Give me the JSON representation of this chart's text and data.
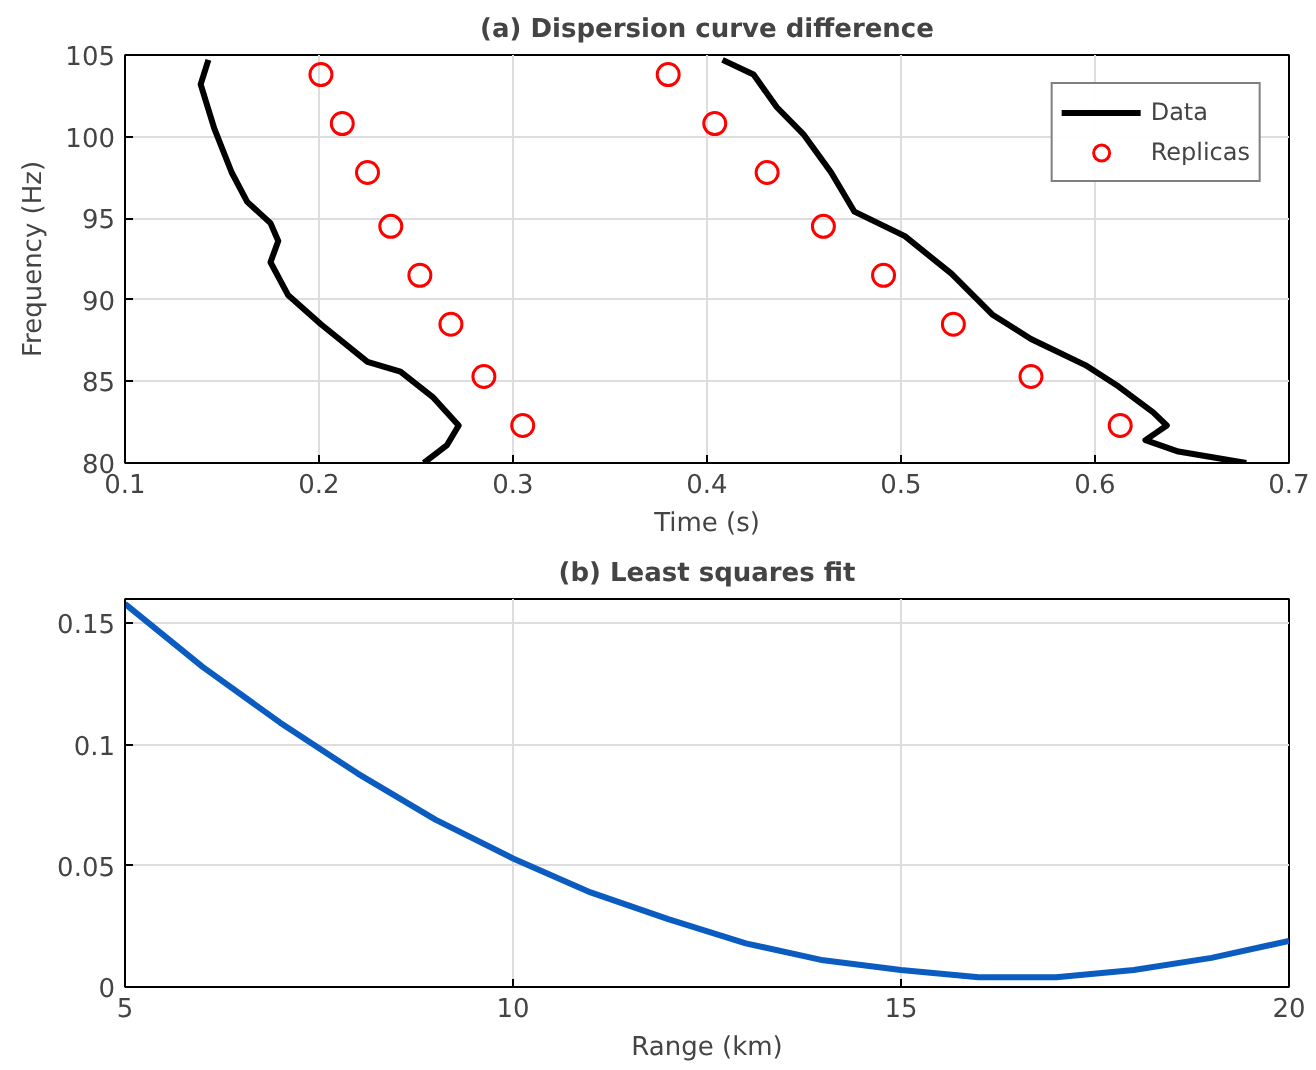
{
  "chart_data": [
    {
      "type": "line",
      "title": "(a) Dispersion curve difference",
      "xlabel": "Time (s)",
      "ylabel": "Frequency (Hz)",
      "xlim": [
        0.1,
        0.7
      ],
      "ylim": [
        80,
        105
      ],
      "xticks": [
        0.1,
        0.2,
        0.3,
        0.4,
        0.5,
        0.6,
        0.7
      ],
      "yticks": [
        80,
        85,
        90,
        95,
        100,
        105
      ],
      "grid": true,
      "legend": "top right",
      "series": [
        {
          "name": "Data",
          "color": "#000000",
          "x": [
            0.143,
            0.139,
            0.146,
            0.155,
            0.163,
            0.175,
            0.179,
            0.175,
            0.184,
            0.201,
            0.225,
            0.242,
            0.259,
            0.272,
            0.266,
            0.254
          ],
          "values": [
            104.7,
            103.2,
            100.5,
            97.8,
            96.0,
            94.7,
            93.6,
            92.3,
            90.3,
            88.5,
            86.2,
            85.6,
            84.0,
            82.3,
            81.1,
            80.0
          ]
        },
        {
          "color": "#000000",
          "x": [
            0.408,
            0.424,
            0.436,
            0.45,
            0.464,
            0.476,
            0.502,
            0.526,
            0.547,
            0.567,
            0.595,
            0.612,
            0.63,
            0.637,
            0.626,
            0.643,
            0.678
          ],
          "values": [
            104.7,
            103.8,
            101.8,
            100.1,
            97.8,
            95.4,
            93.9,
            91.6,
            89.1,
            87.6,
            86.0,
            84.7,
            83.1,
            82.3,
            81.4,
            80.7,
            80.0
          ]
        },
        {
          "name": "Replicas",
          "type": "scatter",
          "marker": "circle",
          "color": "#ff0000",
          "x": [
            0.201,
            0.212,
            0.225,
            0.237,
            0.252,
            0.268,
            0.285,
            0.305
          ],
          "values": [
            103.8,
            100.8,
            97.8,
            94.5,
            91.5,
            88.5,
            85.3,
            82.3
          ]
        },
        {
          "type": "scatter",
          "marker": "circle",
          "color": "#ff0000",
          "x": [
            0.38,
            0.404,
            0.431,
            0.46,
            0.491,
            0.527,
            0.567,
            0.613
          ],
          "values": [
            103.8,
            100.8,
            97.8,
            94.5,
            91.5,
            88.5,
            85.3,
            82.3
          ]
        }
      ]
    },
    {
      "type": "line",
      "title": "(b) Least squares fit",
      "xlabel": "Range (km)",
      "xlim": [
        5,
        20
      ],
      "ylim": [
        0,
        0.16
      ],
      "xticks": [
        5,
        10,
        15,
        20
      ],
      "yticks": [
        0,
        0.05,
        0.1,
        0.15
      ],
      "grid": true,
      "series": [
        {
          "color": "#0a5cc0",
          "x": [
            5,
            6,
            7,
            8,
            9,
            10,
            11,
            12,
            13,
            14,
            15,
            16,
            17,
            18,
            19,
            20
          ],
          "values": [
            0.158,
            0.132,
            0.109,
            0.088,
            0.069,
            0.053,
            0.039,
            0.028,
            0.018,
            0.011,
            0.007,
            0.004,
            0.004,
            0.007,
            0.012,
            0.019
          ]
        }
      ]
    }
  ]
}
